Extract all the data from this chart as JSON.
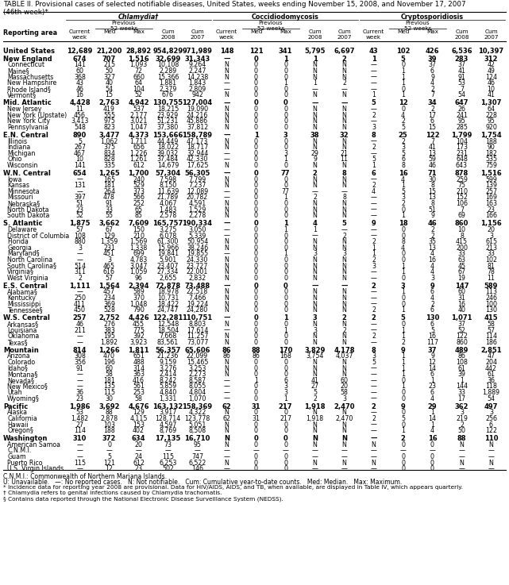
{
  "title_line1": "TABLE II. Provisional cases of selected notifiable diseases, United States, weeks ending November 15, 2008, and November 17, 2007",
  "title_line2": "(46th week)*",
  "col_groups": [
    "Chlamydia†",
    "Coccidiodomycosis",
    "Cryptosporidiosis"
  ],
  "rows": [
    [
      "United States",
      "12,689",
      "21,200",
      "28,892",
      "954,829",
      "971,989",
      "148",
      "121",
      "341",
      "5,795",
      "6,697",
      "43",
      "102",
      "426",
      "6,536",
      "10,397"
    ],
    [
      "New England",
      "674",
      "707",
      "1,516",
      "32,699",
      "31,343",
      "—",
      "0",
      "1",
      "1",
      "2",
      "1",
      "5",
      "39",
      "283",
      "312"
    ],
    [
      "Connecticut",
      "141",
      "215",
      "1,093",
      "10,108",
      "9,264",
      "N",
      "0",
      "0",
      "N",
      "N",
      "—",
      "0",
      "37",
      "37",
      "42"
    ],
    [
      "Maine§",
      "60",
      "50",
      "72",
      "2,289",
      "2,247",
      "N",
      "0",
      "0",
      "N",
      "N",
      "—",
      "1",
      "6",
      "41",
      "49"
    ],
    [
      "Massachusetts",
      "368",
      "327",
      "660",
      "15,366",
      "14,238",
      "N",
      "0",
      "0",
      "N",
      "N",
      "—",
      "1",
      "9",
      "91",
      "124"
    ],
    [
      "New Hampshire",
      "43",
      "40",
      "64",
      "1,881",
      "1,843",
      "—",
      "0",
      "1",
      "1",
      "2",
      "—",
      "1",
      "4",
      "53",
      "46"
    ],
    [
      "Rhode Island§",
      "46",
      "54",
      "104",
      "2,379",
      "2,809",
      "—",
      "0",
      "0",
      "—",
      "—",
      "—",
      "0",
      "2",
      "7",
      "10"
    ],
    [
      "Vermont§",
      "16",
      "15",
      "52",
      "676",
      "942",
      "N",
      "0",
      "0",
      "N",
      "N",
      "1",
      "1",
      "7",
      "54",
      "41"
    ],
    [
      "Mid. Atlantic",
      "4,428",
      "2,763",
      "4,942",
      "130,755",
      "127,004",
      "—",
      "0",
      "0",
      "—",
      "—",
      "5",
      "12",
      "34",
      "647",
      "1,307"
    ],
    [
      "New Jersey",
      "11",
      "419",
      "537",
      "18,215",
      "19,090",
      "N",
      "0",
      "0",
      "N",
      "N",
      "—",
      "0",
      "2",
      "26",
      "64"
    ],
    [
      "New York (Upstate)",
      "456",
      "555",
      "2,177",
      "23,929",
      "24,216",
      "N",
      "0",
      "0",
      "N",
      "N",
      "2",
      "4",
      "17",
      "241",
      "228"
    ],
    [
      "New York City",
      "3,413",
      "975",
      "3,021",
      "51,231",
      "45,886",
      "N",
      "0",
      "0",
      "N",
      "N",
      "—",
      "2",
      "6",
      "95",
      "95"
    ],
    [
      "Pennsylvania",
      "548",
      "823",
      "1,047",
      "37,380",
      "37,812",
      "N",
      "0",
      "0",
      "N",
      "N",
      "3",
      "5",
      "15",
      "285",
      "920"
    ],
    [
      "E.N. Central",
      "890",
      "3,477",
      "4,373",
      "153,666",
      "158,789",
      "—",
      "1",
      "3",
      "38",
      "32",
      "8",
      "25",
      "122",
      "1,799",
      "1,754"
    ],
    [
      "Illinois",
      "5",
      "1,062",
      "1,711",
      "44,449",
      "47,173",
      "N",
      "0",
      "0",
      "N",
      "N",
      "—",
      "2",
      "7",
      "104",
      "188"
    ],
    [
      "Indiana",
      "267",
      "375",
      "656",
      "18,022",
      "18,717",
      "N",
      "0",
      "0",
      "N",
      "N",
      "2",
      "3",
      "41",
      "173",
      "90"
    ],
    [
      "Michigan",
      "467",
      "834",
      "1,226",
      "39,032",
      "32,944",
      "—",
      "0",
      "3",
      "29",
      "21",
      "—",
      "5",
      "13",
      "231",
      "182"
    ],
    [
      "Ohio",
      "10",
      "828",
      "1,261",
      "37,484",
      "42,330",
      "—",
      "0",
      "1",
      "9",
      "11",
      "5",
      "6",
      "59",
      "648",
      "535"
    ],
    [
      "Wisconsin",
      "141",
      "335",
      "612",
      "14,679",
      "17,625",
      "N",
      "0",
      "0",
      "N",
      "N",
      "1",
      "8",
      "46",
      "643",
      "759"
    ],
    [
      "W.N. Central",
      "654",
      "1,265",
      "1,700",
      "57,304",
      "56,305",
      "—",
      "0",
      "77",
      "2",
      "8",
      "6",
      "16",
      "71",
      "878",
      "1,516"
    ],
    [
      "Iowa",
      "—",
      "165",
      "240",
      "7,598",
      "7,799",
      "N",
      "0",
      "0",
      "N",
      "N",
      "—",
      "4",
      "30",
      "259",
      "599"
    ],
    [
      "Kansas",
      "131",
      "181",
      "529",
      "8,150",
      "7,237",
      "N",
      "0",
      "0",
      "N",
      "N",
      "2",
      "1",
      "8",
      "75",
      "139"
    ],
    [
      "Minnesota",
      "—",
      "264",
      "373",
      "11,639",
      "12,089",
      "—",
      "0",
      "77",
      "—",
      "—",
      "4",
      "5",
      "15",
      "210",
      "257"
    ],
    [
      "Missouri",
      "397",
      "478",
      "566",
      "21,789",
      "20,782",
      "—",
      "0",
      "1",
      "2",
      "8",
      "—",
      "3",
      "13",
      "152",
      "169"
    ],
    [
      "Nebraska§",
      "51",
      "91",
      "252",
      "4,067",
      "4,591",
      "N",
      "0",
      "0",
      "N",
      "N",
      "—",
      "2",
      "8",
      "106",
      "163"
    ],
    [
      "North Dakota",
      "23",
      "33",
      "65",
      "1,483",
      "1,529",
      "N",
      "0",
      "0",
      "N",
      "N",
      "—",
      "0",
      "51",
      "7",
      "23"
    ],
    [
      "South Dakota",
      "52",
      "55",
      "85",
      "2,578",
      "2,278",
      "N",
      "0",
      "0",
      "N",
      "N",
      "—",
      "1",
      "9",
      "69",
      "166"
    ],
    [
      "S. Atlantic",
      "1,875",
      "3,662",
      "7,609",
      "165,757",
      "190,334",
      "—",
      "0",
      "1",
      "4",
      "5",
      "9",
      "18",
      "46",
      "860",
      "1,156"
    ],
    [
      "Delaware",
      "57",
      "67",
      "150",
      "3,275",
      "3,050",
      "—",
      "0",
      "1",
      "1",
      "—",
      "—",
      "0",
      "2",
      "10",
      "20"
    ],
    [
      "District of Columbia",
      "108",
      "129",
      "210",
      "6,078",
      "5,339",
      "—",
      "0",
      "0",
      "—",
      "2",
      "—",
      "0",
      "2",
      "8",
      "3"
    ],
    [
      "Florida",
      "880",
      "1,359",
      "1,569",
      "61,300",
      "50,954",
      "N",
      "0",
      "0",
      "N",
      "N",
      "2",
      "8",
      "35",
      "415",
      "615"
    ],
    [
      "Georgia",
      "3",
      "231",
      "1,338",
      "15,966",
      "38,246",
      "N",
      "0",
      "0",
      "N",
      "N",
      "1",
      "4",
      "13",
      "200",
      "213"
    ],
    [
      "Maryland§",
      "—",
      "451",
      "699",
      "19,841",
      "19,855",
      "—",
      "0",
      "1",
      "3",
      "3",
      "1",
      "0",
      "4",
      "33",
      "33"
    ],
    [
      "North Carolina",
      "—",
      "3",
      "4,783",
      "5,901",
      "24,330",
      "N",
      "0",
      "0",
      "N",
      "N",
      "2",
      "0",
      "16",
      "63",
      "102"
    ],
    [
      "South Carolina§",
      "514",
      "465",
      "3,047",
      "23,407",
      "23,727",
      "N",
      "0",
      "0",
      "N",
      "N",
      "3",
      "1",
      "4",
      "45",
      "81"
    ],
    [
      "Virginia§",
      "311",
      "616",
      "1,059",
      "27,334",
      "22,001",
      "N",
      "0",
      "0",
      "N",
      "N",
      "—",
      "1",
      "4",
      "67",
      "78"
    ],
    [
      "West Virginia",
      "2",
      "57",
      "96",
      "2,655",
      "2,832",
      "N",
      "0",
      "0",
      "N",
      "N",
      "—",
      "0",
      "3",
      "19",
      "11"
    ],
    [
      "E.S. Central",
      "1,111",
      "1,564",
      "2,394",
      "72,878",
      "73,488",
      "—",
      "0",
      "0",
      "—",
      "—",
      "2",
      "3",
      "9",
      "147",
      "589"
    ],
    [
      "Alabama§",
      "—",
      "457",
      "589",
      "18,978",
      "22,518",
      "N",
      "0",
      "0",
      "N",
      "N",
      "—",
      "1",
      "6",
      "60",
      "113"
    ],
    [
      "Kentucky",
      "250",
      "234",
      "370",
      "10,731",
      "7,466",
      "N",
      "0",
      "0",
      "N",
      "N",
      "—",
      "0",
      "4",
      "31",
      "246"
    ],
    [
      "Mississippi",
      "411",
      "369",
      "1,048",
      "18,422",
      "19,224",
      "N",
      "0",
      "0",
      "N",
      "N",
      "—",
      "0",
      "2",
      "16",
      "100"
    ],
    [
      "Tennessee§",
      "450",
      "528",
      "790",
      "24,747",
      "24,280",
      "N",
      "0",
      "0",
      "N",
      "N",
      "2",
      "1",
      "6",
      "40",
      "130"
    ],
    [
      "W.S. Central",
      "257",
      "2,752",
      "4,426",
      "122,281",
      "110,751",
      "—",
      "0",
      "1",
      "3",
      "2",
      "2",
      "5",
      "130",
      "1,071",
      "415"
    ],
    [
      "Arkansas§",
      "46",
      "276",
      "455",
      "12,548",
      "8,803",
      "N",
      "0",
      "0",
      "N",
      "N",
      "—",
      "0",
      "6",
      "37",
      "58"
    ],
    [
      "Louisiana",
      "211",
      "383",
      "775",
      "18,504",
      "17,614",
      "—",
      "0",
      "1",
      "3",
      "2",
      "—",
      "1",
      "5",
      "52",
      "57"
    ],
    [
      "Oklahoma",
      "—",
      "195",
      "392",
      "7,668",
      "11,257",
      "N",
      "0",
      "0",
      "N",
      "N",
      "2",
      "1",
      "16",
      "122",
      "114"
    ],
    [
      "Texas§",
      "—",
      "1,892",
      "3,923",
      "83,561",
      "73,077",
      "N",
      "0",
      "0",
      "N",
      "N",
      "—",
      "2",
      "117",
      "860",
      "186"
    ],
    [
      "Mountain",
      "814",
      "1,266",
      "1,811",
      "56,357",
      "65,606",
      "86",
      "88",
      "170",
      "3,829",
      "4,178",
      "8",
      "9",
      "37",
      "489",
      "2,851"
    ],
    [
      "Arizona",
      "308",
      "470",
      "651",
      "21,236",
      "22,099",
      "86",
      "86",
      "168",
      "3,754",
      "4,037",
      "3",
      "1",
      "9",
      "86",
      "47"
    ],
    [
      "Colorado",
      "356",
      "196",
      "488",
      "9,159",
      "15,465",
      "N",
      "0",
      "0",
      "N",
      "N",
      "5",
      "1",
      "12",
      "108",
      "204"
    ],
    [
      "Idaho§",
      "91",
      "60",
      "314",
      "3,276",
      "3,253",
      "N",
      "0",
      "0",
      "N",
      "N",
      "—",
      "1",
      "14",
      "61",
      "442"
    ],
    [
      "Montana§",
      "—",
      "58",
      "363",
      "2,414",
      "2,273",
      "N",
      "0",
      "0",
      "N",
      "N",
      "—",
      "1",
      "6",
      "39",
      "61"
    ],
    [
      "Nevada§",
      "—",
      "181",
      "416",
      "8,242",
      "8,587",
      "—",
      "1",
      "6",
      "41",
      "60",
      "—",
      "0",
      "1",
      "1",
      "36"
    ],
    [
      "New Mexico§",
      "—",
      "135",
      "561",
      "5,859",
      "8,055",
      "—",
      "0",
      "3",
      "27",
      "20",
      "—",
      "1",
      "23",
      "144",
      "118"
    ],
    [
      "Utah",
      "36",
      "115",
      "253",
      "4,840",
      "4,804",
      "—",
      "0",
      "3",
      "5",
      "58",
      "—",
      "0",
      "6",
      "33",
      "1,889"
    ],
    [
      "Wyoming§",
      "23",
      "30",
      "58",
      "1,331",
      "1,070",
      "—",
      "0",
      "1",
      "2",
      "3",
      "—",
      "0",
      "4",
      "17",
      "54"
    ],
    [
      "Pacific",
      "1,986",
      "3,692",
      "4,676",
      "163,132",
      "158,369",
      "62",
      "31",
      "217",
      "1,918",
      "2,470",
      "2",
      "9",
      "29",
      "362",
      "497"
    ],
    [
      "Alaska",
      "53",
      "88",
      "129",
      "3,917",
      "4,322",
      "N",
      "0",
      "0",
      "N",
      "N",
      "—",
      "0",
      "1",
      "3",
      "3"
    ],
    [
      "California",
      "1,482",
      "2,878",
      "4,115",
      "128,714",
      "123,778",
      "62",
      "31",
      "217",
      "1,918",
      "2,470",
      "2",
      "5",
      "14",
      "219",
      "256"
    ],
    [
      "Hawaii",
      "27",
      "103",
      "153",
      "4,597",
      "5,051",
      "N",
      "0",
      "0",
      "N",
      "N",
      "—",
      "0",
      "1",
      "2",
      "6"
    ],
    [
      "Oregon§",
      "114",
      "188",
      "402",
      "8,769",
      "8,508",
      "N",
      "0",
      "0",
      "N",
      "N",
      "—",
      "1",
      "4",
      "50",
      "122"
    ],
    [
      "Washington",
      "310",
      "372",
      "634",
      "17,135",
      "16,710",
      "N",
      "0",
      "0",
      "N",
      "N",
      "—",
      "2",
      "16",
      "88",
      "110"
    ],
    [
      "American Samoa",
      "—",
      "0",
      "20",
      "73",
      "95",
      "N",
      "0",
      "0",
      "N",
      "N",
      "N",
      "0",
      "0",
      "N",
      "N"
    ],
    [
      "C.N.M.I.",
      "—",
      "—",
      "—",
      "—",
      "—",
      "—",
      "—",
      "—",
      "—",
      "—",
      "—",
      "—",
      "—",
      "—",
      "—"
    ],
    [
      "Guam",
      "—",
      "5",
      "24",
      "115",
      "747",
      "—",
      "0",
      "0",
      "—",
      "—",
      "—",
      "0",
      "0",
      "—",
      "—"
    ],
    [
      "Puerto Rico",
      "115",
      "121",
      "612",
      "6,253",
      "6,522",
      "N",
      "0",
      "0",
      "N",
      "N",
      "N",
      "0",
      "0",
      "N",
      "N"
    ],
    [
      "U.S. Virgin Islands",
      "—",
      "12",
      "23",
      "502",
      "146",
      "—",
      "0",
      "0",
      "—",
      "—",
      "—",
      "0",
      "0",
      "—",
      "—"
    ]
  ],
  "bold_rows": [
    0,
    1,
    8,
    13,
    19,
    27,
    37,
    42,
    47,
    56,
    61
  ],
  "section_gap_before": [
    1,
    8,
    13,
    19,
    27,
    37,
    42,
    47,
    56,
    61
  ],
  "footnotes": [
    "C.N.M.I.: Commonwealth of Northern Mariana Islands.",
    "U: Unavailable.   —: No reported cases.   N: Not notifiable.   Cum: Cumulative year-to-date counts.   Med: Median.   Max: Maximum.",
    "* Incidence data for reporting year 2008 are provisional. Data for HIV/AIDS, AIDS, and TB, when available, are displayed in Table IV, which appears quarterly.",
    "† Chlamydia refers to genital infections caused by Chlamydia trachomatis.",
    "§ Contains data reported through the National Electronic Disease Surveillance System (NEDSS)."
  ]
}
